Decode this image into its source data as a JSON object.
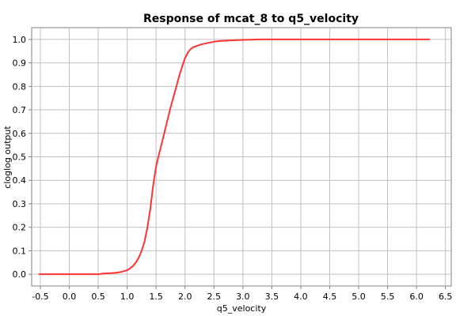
{
  "chart_data": {
    "type": "line",
    "title": "Response of mcat_8 to q5_velocity",
    "xlabel": "q5_velocity",
    "ylabel": "cloglog output",
    "xlim": [
      -0.65,
      6.6
    ],
    "ylim": [
      -0.05,
      1.05
    ],
    "xticks": [
      "-0.5",
      "0.0",
      "0.5",
      "1.0",
      "1.5",
      "2.0",
      "2.5",
      "3.0",
      "3.5",
      "4.0",
      "4.5",
      "5.0",
      "5.5",
      "6.0",
      "6.5"
    ],
    "yticks": [
      "0.0",
      "0.1",
      "0.2",
      "0.3",
      "0.4",
      "0.5",
      "0.6",
      "0.7",
      "0.8",
      "0.9",
      "1.0"
    ],
    "grid": true,
    "series": [
      {
        "color": "#ff3333",
        "x": [
          -0.52,
          0.0,
          0.5,
          0.6,
          0.8,
          0.9,
          1.0,
          1.05,
          1.1,
          1.15,
          1.2,
          1.25,
          1.3,
          1.35,
          1.4,
          1.45,
          1.5,
          1.55,
          1.6,
          1.65,
          1.7,
          1.75,
          1.8,
          1.85,
          1.9,
          1.95,
          2.0,
          2.05,
          2.1,
          2.15,
          2.2,
          2.25,
          2.3,
          2.4,
          2.5,
          2.6,
          2.8,
          3.0,
          3.3,
          4.0,
          5.0,
          6.0,
          6.22
        ],
        "y": [
          0.0,
          0.0,
          0.0,
          0.003,
          0.006,
          0.01,
          0.017,
          0.025,
          0.035,
          0.05,
          0.07,
          0.1,
          0.14,
          0.2,
          0.28,
          0.38,
          0.46,
          0.51,
          0.56,
          0.61,
          0.66,
          0.71,
          0.755,
          0.8,
          0.845,
          0.885,
          0.92,
          0.945,
          0.96,
          0.968,
          0.972,
          0.976,
          0.98,
          0.985,
          0.99,
          0.993,
          0.996,
          0.998,
          1.0,
          1.0,
          1.0,
          1.0,
          1.0
        ]
      }
    ]
  }
}
